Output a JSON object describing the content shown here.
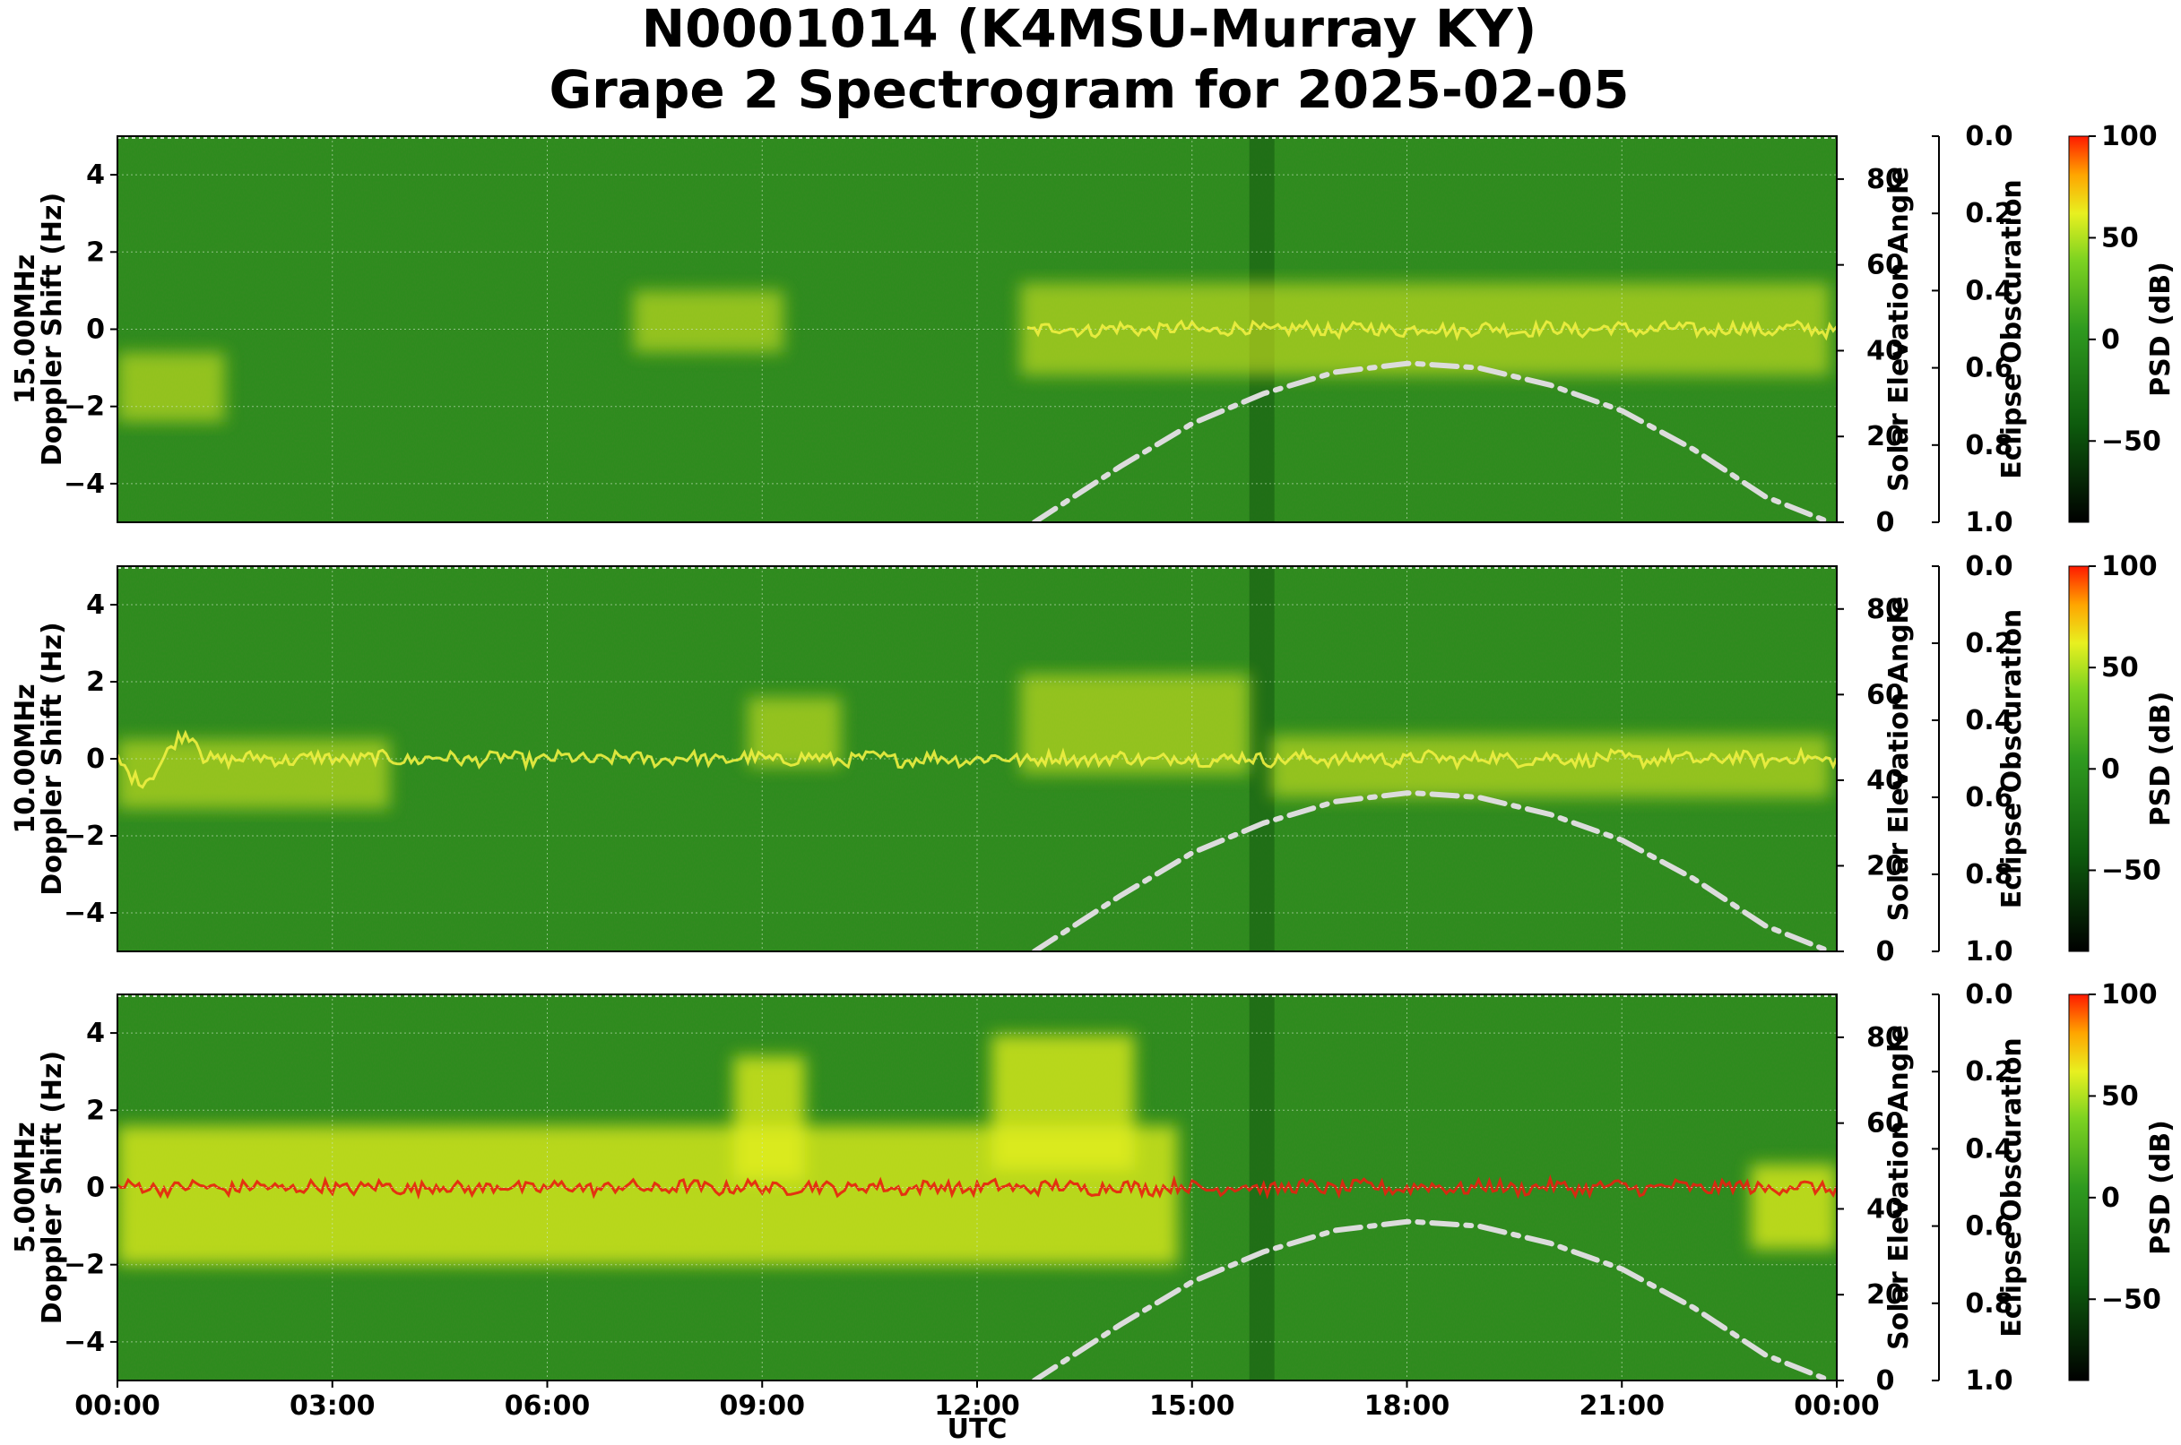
{
  "title_line1": "N0001014 (K4MSU-Murray KY)",
  "title_line2": "Grape 2 Spectrogram for 2025-02-05",
  "colors": {
    "background_green": "#2e8b1e",
    "band_yellow": "#e6f01e",
    "hot_red": "#e82010",
    "elevation_curve": "#dcdcdc"
  },
  "chart_data": [
    {
      "type": "heatmap",
      "panel_label": "15.00MHz",
      "ylabel": "Doppler Shift (Hz)",
      "xlabel": "",
      "ylim": [
        -5,
        5
      ],
      "yticks": [
        "4",
        "2",
        "0",
        "−2",
        "−4"
      ],
      "right_axis_label": "Solar Elevation Angle",
      "right_ticks": [
        "80",
        "60",
        "40",
        "20",
        "0"
      ],
      "eclipse_label": "Eclipse Obscuration",
      "eclipse_ticks": [
        "0.0",
        "0.2",
        "0.4",
        "0.6",
        "0.8",
        "1.0"
      ],
      "colorbar_label": "PSD (dB)",
      "colorbar_ticks": [
        "100",
        "50",
        "0",
        "−50"
      ],
      "solar_elevation": {
        "hours": [
          12.8,
          14,
          15,
          16,
          17,
          18,
          18.1,
          19,
          20,
          21,
          22,
          23,
          23.9
        ],
        "degrees": [
          0,
          13,
          23,
          30,
          35,
          37,
          37,
          36,
          32,
          26,
          17,
          6,
          0
        ]
      }
    },
    {
      "type": "heatmap",
      "panel_label": "10.00MHz",
      "ylabel": "Doppler Shift (Hz)",
      "xlabel": "",
      "ylim": [
        -5,
        5
      ],
      "yticks": [
        "4",
        "2",
        "0",
        "−2",
        "−4"
      ],
      "right_axis_label": "Solar Elevation Angle",
      "right_ticks": [
        "80",
        "60",
        "40",
        "20",
        "0"
      ],
      "eclipse_label": "Eclipse Obscuration",
      "eclipse_ticks": [
        "0.0",
        "0.2",
        "0.4",
        "0.6",
        "0.8",
        "1.0"
      ],
      "colorbar_label": "PSD (dB)",
      "colorbar_ticks": [
        "100",
        "50",
        "0",
        "−50"
      ],
      "solar_elevation": {
        "hours": [
          12.8,
          14,
          15,
          16,
          17,
          18,
          18.1,
          19,
          20,
          21,
          22,
          23,
          23.9
        ],
        "degrees": [
          0,
          13,
          23,
          30,
          35,
          37,
          37,
          36,
          32,
          26,
          17,
          6,
          0
        ]
      }
    },
    {
      "type": "heatmap",
      "panel_label": "5.00MHz",
      "ylabel": "Doppler Shift (Hz)",
      "xlabel": "UTC",
      "ylim": [
        -5,
        5
      ],
      "yticks": [
        "4",
        "2",
        "0",
        "−2",
        "−4"
      ],
      "right_axis_label": "Solar Elevation Angle",
      "right_ticks": [
        "80",
        "60",
        "40",
        "20",
        "0"
      ],
      "eclipse_label": "Eclipse Obscuration",
      "eclipse_ticks": [
        "0.0",
        "0.2",
        "0.4",
        "0.6",
        "0.8",
        "1.0"
      ],
      "colorbar_label": "PSD (dB)",
      "colorbar_ticks": [
        "100",
        "50",
        "0",
        "−50"
      ],
      "solar_elevation": {
        "hours": [
          12.8,
          14,
          15,
          16,
          17,
          18,
          18.1,
          19,
          20,
          21,
          22,
          23,
          23.9
        ],
        "degrees": [
          0,
          13,
          23,
          30,
          35,
          37,
          37,
          36,
          32,
          26,
          17,
          6,
          0
        ]
      }
    }
  ],
  "xticks": [
    "00:00",
    "03:00",
    "06:00",
    "09:00",
    "12:00",
    "15:00",
    "18:00",
    "21:00",
    "00:00"
  ]
}
